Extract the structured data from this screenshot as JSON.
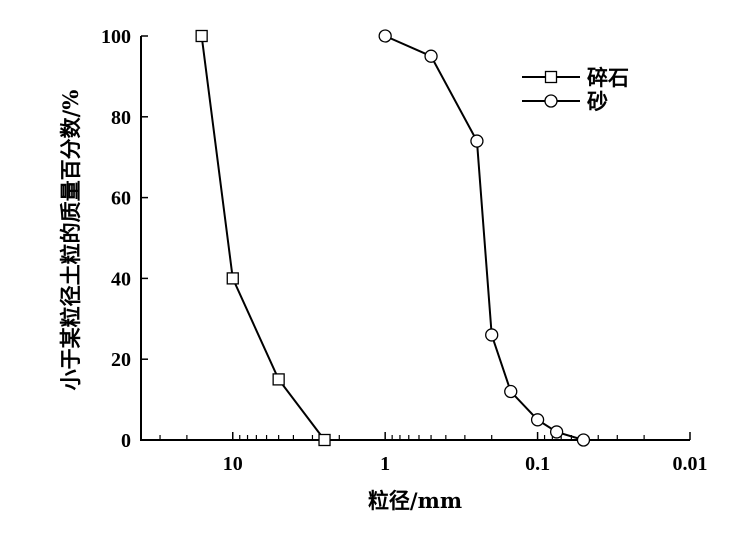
{
  "chart_data": {
    "type": "line",
    "xlabel": "粒径/mm",
    "ylabel": "小于某粒径土粒的质量百分数/%",
    "x_scale": "log",
    "x_reversed": true,
    "xlim": [
      40,
      0.01
    ],
    "ylim": [
      0,
      100
    ],
    "x_ticks": [
      "10",
      "1",
      "0.1",
      "0.01"
    ],
    "y_ticks": [
      "0",
      "20",
      "40",
      "60",
      "80",
      "100"
    ],
    "grid": false,
    "legend_position": "top-right",
    "series": [
      {
        "name": "碎石",
        "marker": "square",
        "x": [
          16,
          10,
          5,
          2.5
        ],
        "y": [
          100,
          40,
          15,
          0
        ]
      },
      {
        "name": "砂",
        "marker": "circle",
        "x": [
          1,
          0.5,
          0.25,
          0.2,
          0.15,
          0.1,
          0.075,
          0.05
        ],
        "y": [
          100,
          95,
          74,
          26,
          12,
          5,
          2,
          0
        ]
      }
    ],
    "colors": {
      "line": "#000000",
      "marker_fill": "#ffffff"
    }
  }
}
